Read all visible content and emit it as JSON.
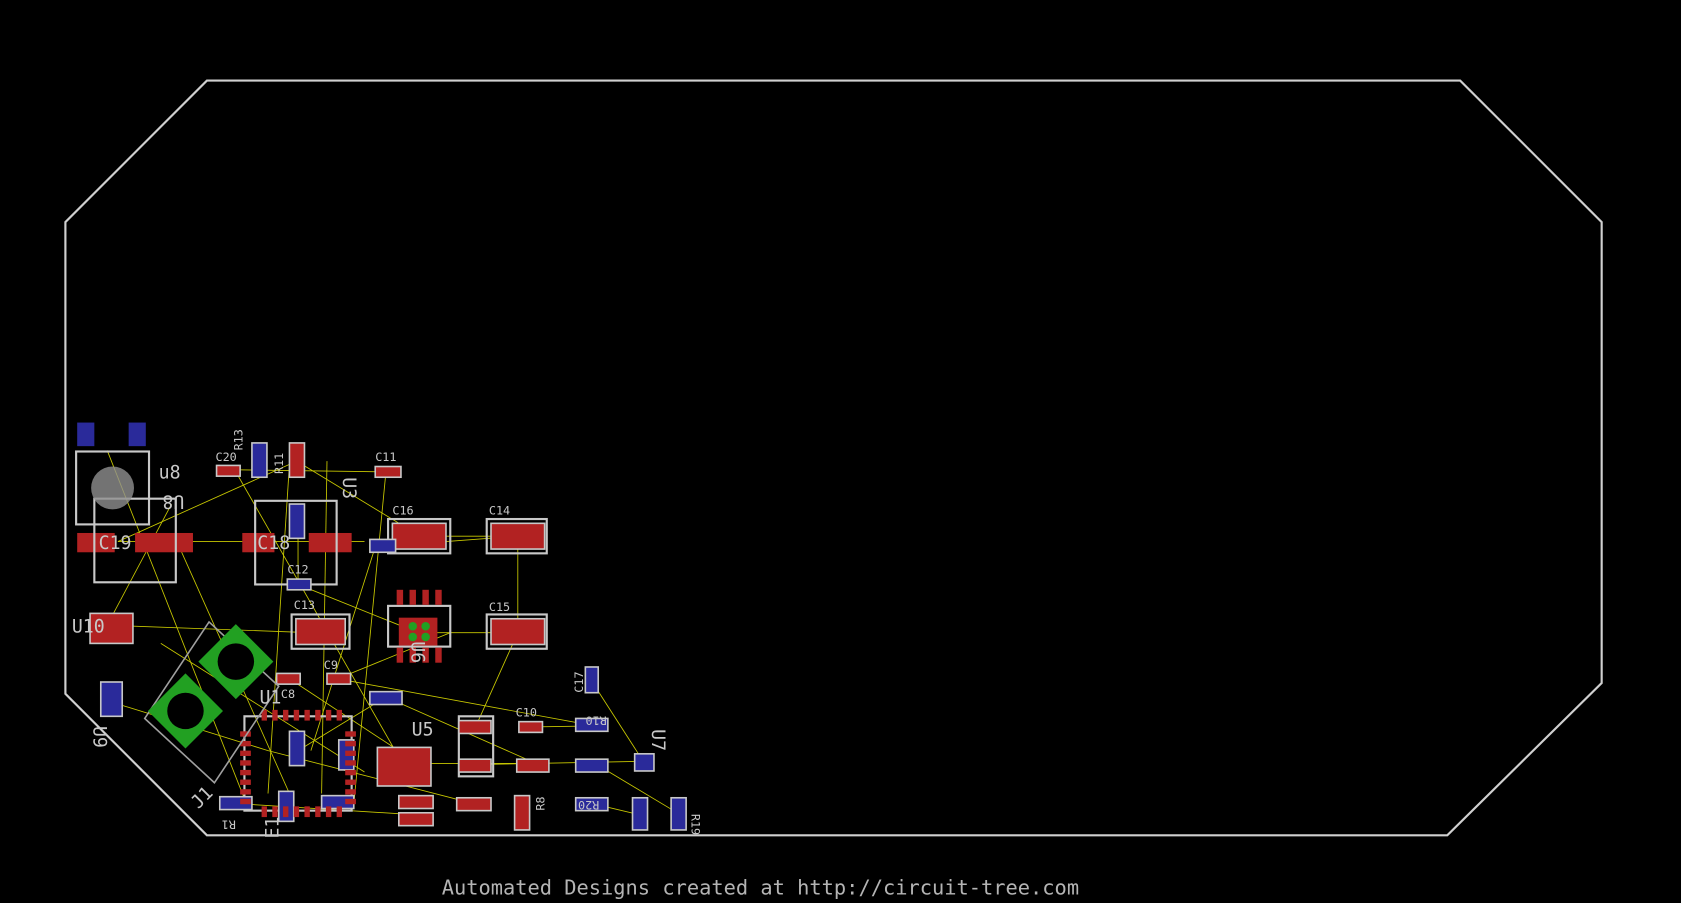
{
  "footer": "Automated Designs created at http://circuit-tree.com",
  "components": [
    "C20",
    "R13",
    "R11",
    "C11",
    "u8",
    "U8",
    "C19",
    "C18",
    "U3",
    "C16",
    "C14",
    "C12",
    "C13",
    "C15",
    "U6",
    "U10",
    "U1",
    "C8",
    "C9",
    "U5",
    "C10",
    "R10",
    "C17",
    "U7",
    "J1",
    "U9",
    "R1",
    "R8",
    "R20",
    "R19",
    "E1"
  ]
}
